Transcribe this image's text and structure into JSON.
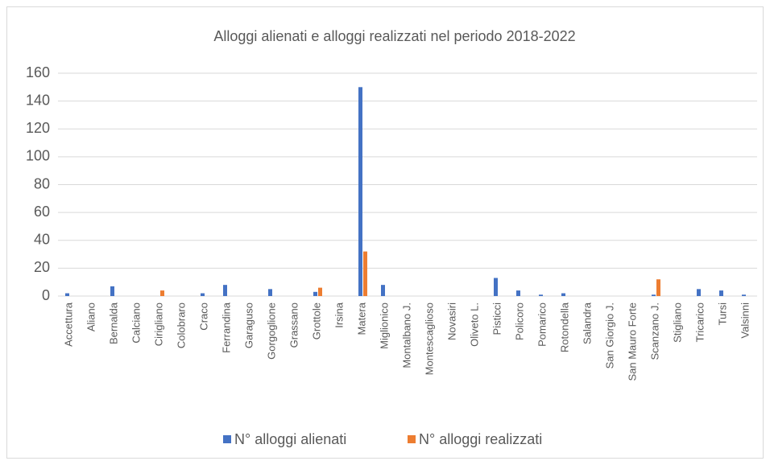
{
  "chart_data": {
    "type": "bar",
    "title": "Alloggi alienati e alloggi realizzati nel periodo 2018-2022",
    "categories": [
      "Accettura",
      "Aliano",
      "Bernalda",
      "Calciano",
      "Cirigliano",
      "Colobraro",
      "Craco",
      "Ferrandina",
      "Garaguso",
      "Gorgoglione",
      "Grassano",
      "Grottole",
      "Irsina",
      "Matera",
      "Miglionico",
      "Montalbano J.",
      "Montescaglioso",
      "Novasiri",
      "Oliveto L.",
      "Pisticci",
      "Policoro",
      "Pomarico",
      "Rotondella",
      "Salandra",
      "San Giorgio J.",
      "San Mauro Forte",
      "Scanzano J.",
      "Stigliano",
      "Tricarico",
      "Tursi",
      "Valsinni"
    ],
    "series": [
      {
        "name": "N° alloggi alienati",
        "color": "#4472c4",
        "values": [
          2,
          0,
          7,
          0,
          0,
          0,
          2,
          8,
          0,
          5,
          0,
          3,
          0,
          150,
          8,
          0,
          0,
          0,
          0,
          13,
          4,
          1,
          2,
          0,
          0,
          0,
          1,
          0,
          5,
          4,
          1
        ]
      },
      {
        "name": "N° alloggi realizzati",
        "color": "#ed7d31",
        "values": [
          0,
          0,
          0,
          0,
          4,
          0,
          0,
          0,
          0,
          0,
          0,
          6,
          0,
          32,
          0,
          0,
          0,
          0,
          0,
          0,
          0,
          0,
          0,
          0,
          0,
          0,
          12,
          0,
          0,
          0,
          0
        ]
      }
    ],
    "ylim": [
      0,
      160
    ],
    "yticks": [
      0,
      20,
      40,
      60,
      80,
      100,
      120,
      140,
      160
    ],
    "grid": true,
    "legend": "bottom"
  }
}
